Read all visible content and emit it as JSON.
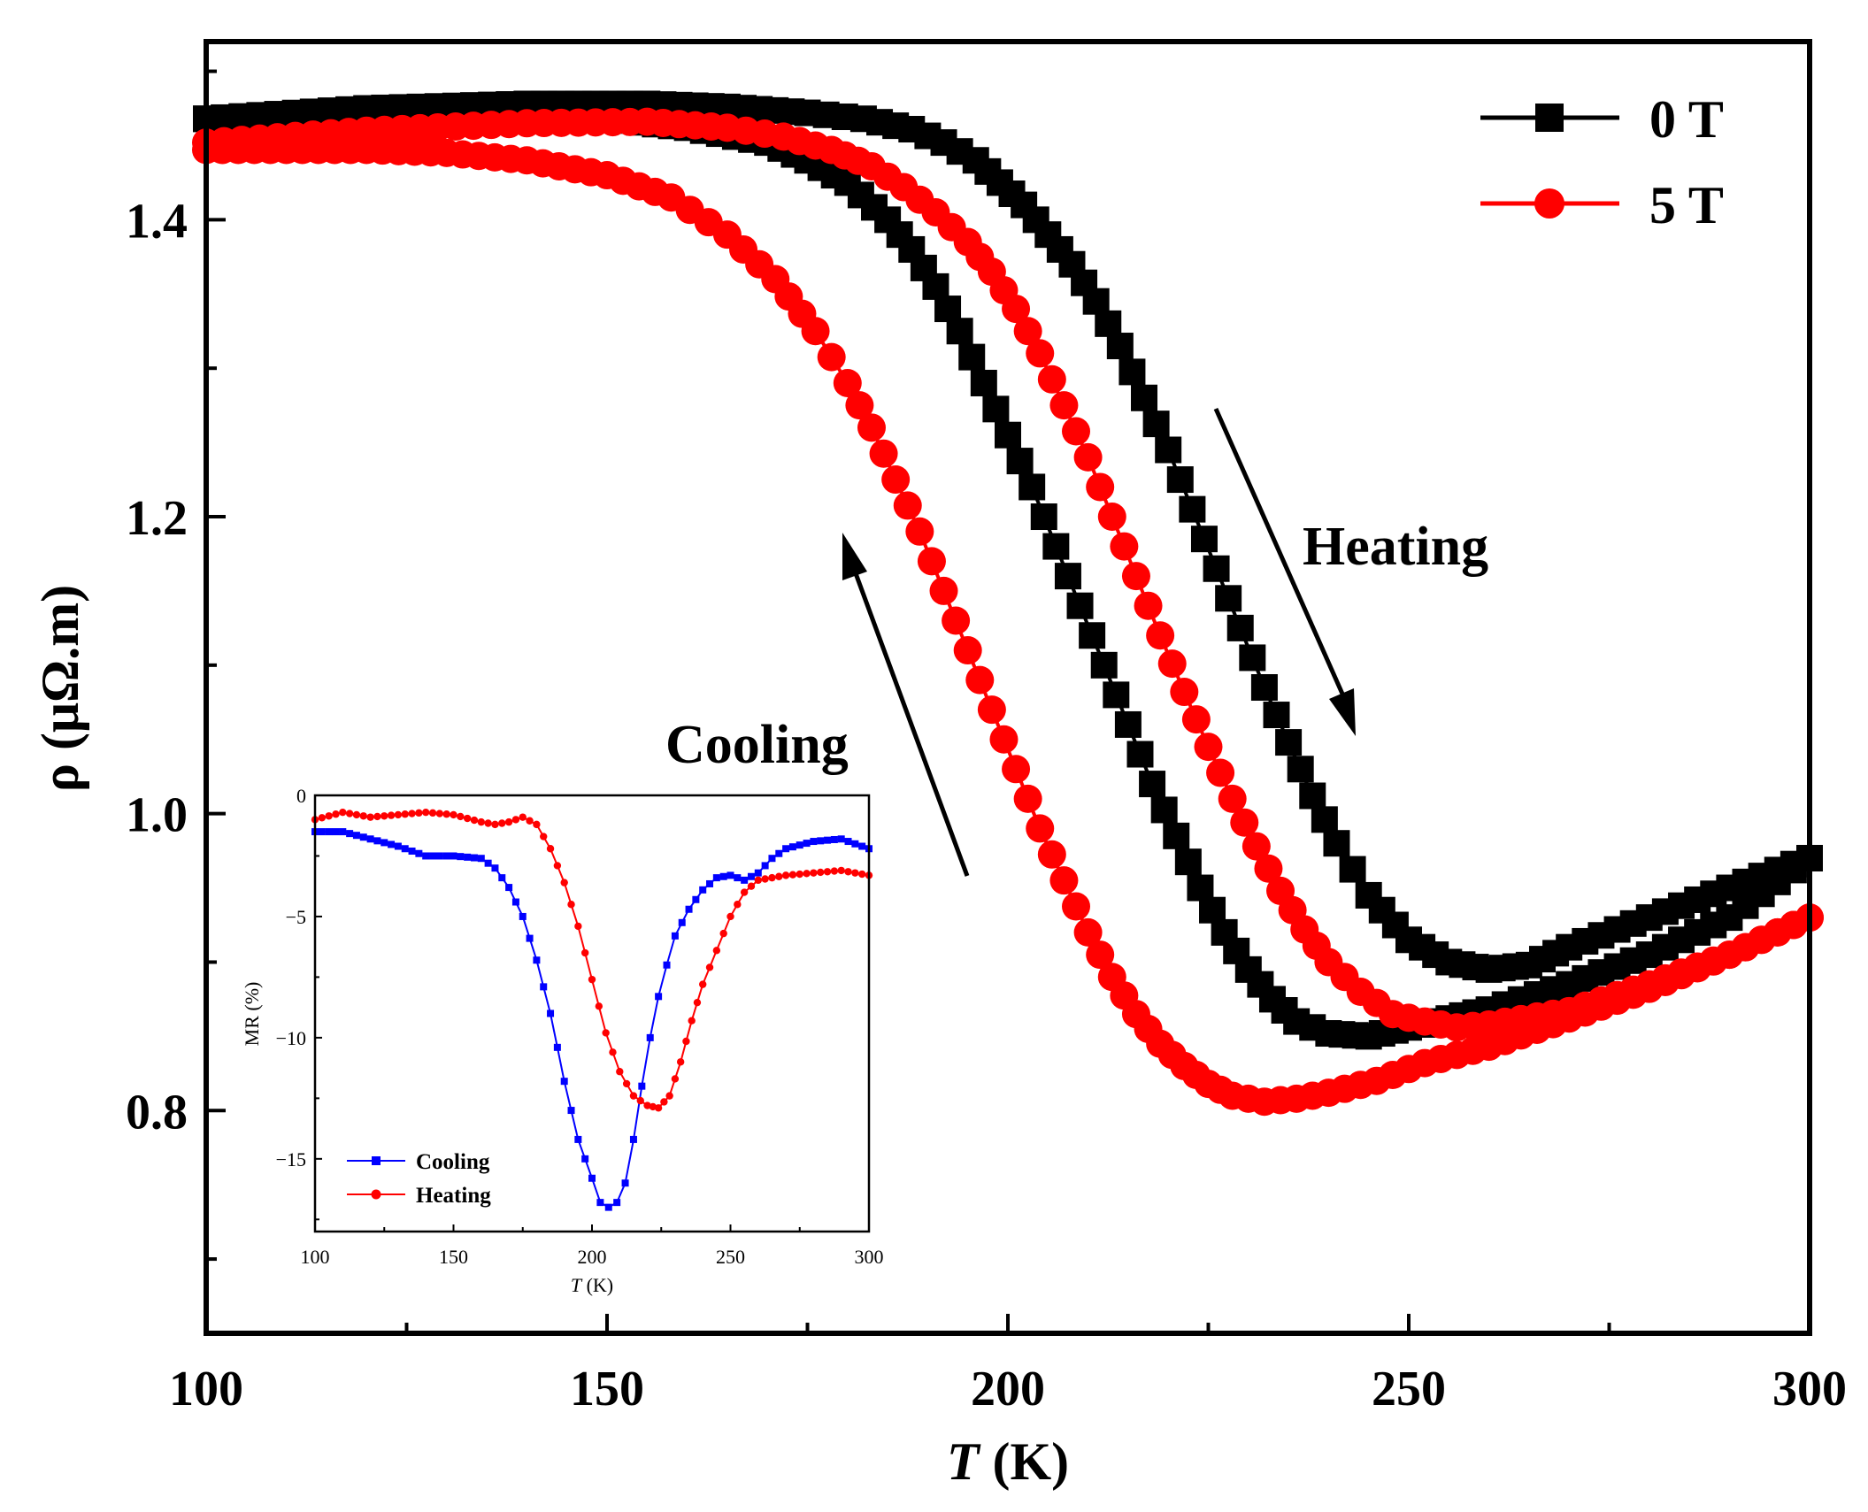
{
  "chart_data": [
    {
      "type": "scatter",
      "role": "main",
      "xlabel": "T",
      "xlabel_unit": " (K)",
      "ylabel": "ρ (μΩ.m)",
      "xlim": [
        100,
        300
      ],
      "ylim": [
        0.65,
        1.52
      ],
      "xticks": [
        100,
        150,
        200,
        250,
        300
      ],
      "xtick_labels": [
        "100",
        "150",
        "200",
        "250",
        "300"
      ],
      "yticks": [
        0.8,
        1.0,
        1.2,
        1.4
      ],
      "ytick_labels": [
        "0.8",
        "1.0",
        "1.2",
        "1.4"
      ],
      "legend": [
        "0 T",
        "5 T"
      ],
      "legend_position": "top-right",
      "annotations": [
        "Heating",
        "Cooling"
      ],
      "series": [
        {
          "name": "0 T",
          "color": "#000000",
          "marker": "square",
          "loops": [
            {
              "branch": "heating",
              "x": [
                100,
                120,
                140,
                155,
                165,
                175,
                182,
                188,
                192,
                196,
                199,
                202,
                205,
                208,
                211,
                214,
                217,
                220,
                223,
                226,
                229,
                232,
                235,
                238,
                241,
                245,
                250,
                255,
                260,
                265,
                270,
                280,
                290,
                300
              ],
              "y": [
                1.468,
                1.475,
                1.478,
                1.478,
                1.476,
                1.472,
                1.468,
                1.461,
                1.452,
                1.44,
                1.425,
                1.41,
                1.39,
                1.37,
                1.345,
                1.315,
                1.28,
                1.245,
                1.205,
                1.165,
                1.125,
                1.085,
                1.048,
                1.012,
                0.98,
                0.945,
                0.915,
                0.9,
                0.895,
                0.898,
                0.91,
                0.93,
                0.95,
                0.97
              ]
            },
            {
              "branch": "cooling",
              "x": [
                300,
                290,
                280,
                270,
                260,
                255,
                250,
                245,
                240,
                236,
                233,
                230,
                227,
                224,
                221,
                218,
                215,
                212,
                209,
                206,
                203,
                200,
                197,
                194,
                191,
                188,
                185,
                180,
                175,
                170,
                160,
                150,
                140,
                120,
                100
              ],
              "y": [
                0.97,
                0.93,
                0.905,
                0.885,
                0.868,
                0.862,
                0.856,
                0.85,
                0.852,
                0.86,
                0.875,
                0.895,
                0.92,
                0.95,
                0.985,
                1.02,
                1.06,
                1.1,
                1.14,
                1.18,
                1.22,
                1.255,
                1.29,
                1.325,
                1.355,
                1.38,
                1.4,
                1.425,
                1.44,
                1.452,
                1.462,
                1.468,
                1.47,
                1.47,
                1.468
              ]
            }
          ]
        },
        {
          "name": "5 T",
          "color": "#ff0000",
          "marker": "circle",
          "loops": [
            {
              "branch": "heating",
              "x": [
                100,
                120,
                140,
                155,
                165,
                172,
                178,
                183,
                187,
                191,
                195,
                198,
                201,
                204,
                207,
                210,
                213,
                216,
                219,
                222,
                225,
                228,
                231,
                234,
                237,
                240,
                244,
                248,
                252,
                256,
                260,
                270,
                280,
                290,
                300
              ],
              "y": [
                1.452,
                1.46,
                1.465,
                1.466,
                1.462,
                1.456,
                1.447,
                1.436,
                1.422,
                1.405,
                1.385,
                1.365,
                1.34,
                1.31,
                1.275,
                1.24,
                1.2,
                1.16,
                1.12,
                1.082,
                1.045,
                1.01,
                0.978,
                0.948,
                0.922,
                0.9,
                0.88,
                0.865,
                0.86,
                0.856,
                0.858,
                0.867,
                0.885,
                0.905,
                0.93
              ]
            },
            {
              "branch": "cooling",
              "x": [
                300,
                290,
                280,
                270,
                260,
                252,
                246,
                240,
                236,
                232,
                228,
                225,
                222,
                219,
                216,
                213,
                210,
                207,
                204,
                201,
                198,
                195,
                192,
                189,
                186,
                183,
                180,
                176,
                171,
                165,
                158,
                150,
                140,
                130,
                120,
                110,
                100
              ],
              "y": [
                0.93,
                0.905,
                0.882,
                0.862,
                0.843,
                0.832,
                0.82,
                0.812,
                0.808,
                0.806,
                0.81,
                0.818,
                0.83,
                0.845,
                0.865,
                0.89,
                0.92,
                0.955,
                0.99,
                1.03,
                1.07,
                1.11,
                1.15,
                1.19,
                1.225,
                1.26,
                1.29,
                1.325,
                1.36,
                1.39,
                1.415,
                1.43,
                1.44,
                1.445,
                1.447,
                1.447,
                1.447
              ]
            }
          ]
        }
      ]
    },
    {
      "type": "line",
      "role": "inset",
      "xlabel": "T",
      "xlabel_unit": " (K)",
      "ylabel": "MR (%)",
      "xlim": [
        100,
        300
      ],
      "ylim": [
        -18,
        0
      ],
      "xticks": [
        100,
        150,
        200,
        250,
        300
      ],
      "xtick_labels": [
        "100",
        "150",
        "200",
        "250",
        "300"
      ],
      "yticks": [
        0,
        -5,
        -10,
        -15
      ],
      "ytick_labels": [
        "0",
        "−5",
        "−10",
        "−15"
      ],
      "legend_position": "bottom-left",
      "series": [
        {
          "name": "Cooling",
          "color": "#0000ff",
          "marker": "square",
          "x": [
            100,
            110,
            120,
            130,
            140,
            150,
            160,
            165,
            170,
            175,
            180,
            185,
            190,
            195,
            200,
            203,
            206,
            209,
            212,
            215,
            218,
            221,
            224,
            227,
            230,
            235,
            240,
            245,
            250,
            255,
            260,
            265,
            270,
            280,
            290,
            295,
            300
          ],
          "y": [
            -1.5,
            -1.5,
            -1.8,
            -2.1,
            -2.5,
            -2.5,
            -2.6,
            -3.0,
            -3.8,
            -5.0,
            -6.8,
            -9.0,
            -11.8,
            -14.2,
            -15.8,
            -16.8,
            -17.0,
            -16.8,
            -16.0,
            -14.2,
            -12.0,
            -10.0,
            -8.3,
            -7.0,
            -5.8,
            -4.7,
            -3.9,
            -3.4,
            -3.3,
            -3.5,
            -3.2,
            -2.6,
            -2.2,
            -1.9,
            -1.8,
            -2.0,
            -2.2
          ]
        },
        {
          "name": "Heating",
          "color": "#ff0000",
          "marker": "circle",
          "x": [
            100,
            110,
            120,
            130,
            140,
            150,
            160,
            165,
            170,
            175,
            180,
            185,
            190,
            195,
            200,
            205,
            210,
            215,
            220,
            224,
            228,
            232,
            236,
            240,
            245,
            250,
            255,
            260,
            265,
            270,
            280,
            290,
            295,
            300
          ],
          "y": [
            -1.0,
            -0.7,
            -0.9,
            -0.8,
            -0.7,
            -0.8,
            -1.1,
            -1.2,
            -1.1,
            -0.9,
            -1.2,
            -2.2,
            -3.6,
            -5.4,
            -7.6,
            -9.8,
            -11.4,
            -12.4,
            -12.8,
            -12.9,
            -12.4,
            -11.0,
            -9.3,
            -7.8,
            -6.4,
            -5.0,
            -4.0,
            -3.5,
            -3.4,
            -3.3,
            -3.2,
            -3.1,
            -3.2,
            -3.3
          ]
        }
      ]
    }
  ]
}
